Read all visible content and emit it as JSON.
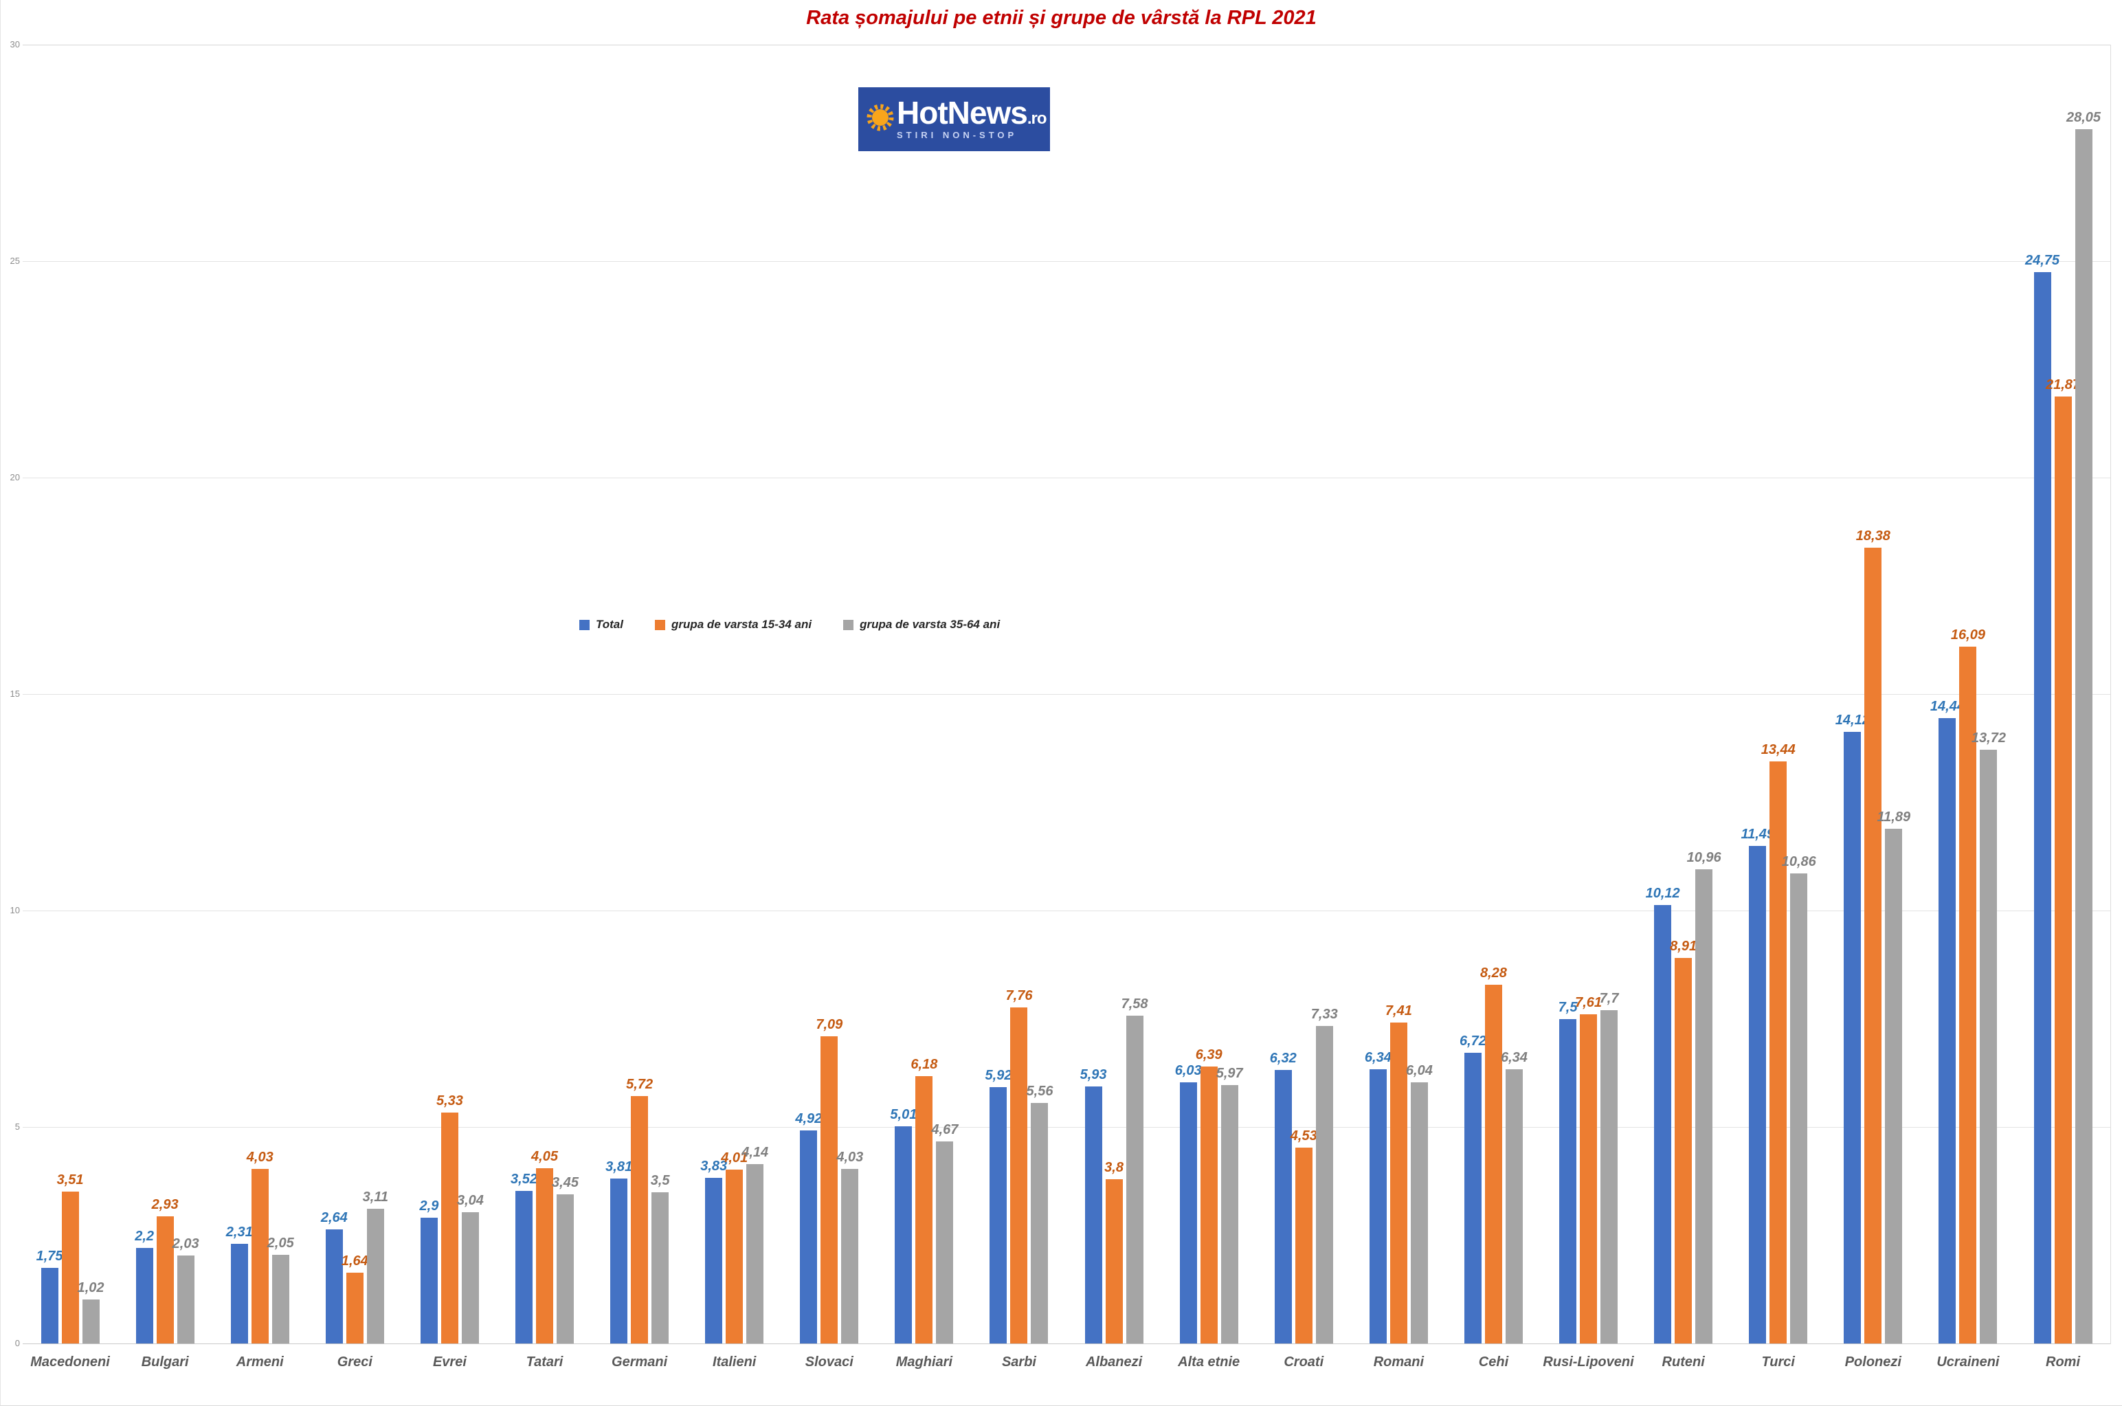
{
  "title": "Rata șomajului pe etnii și grupe de vârstă la RPL 2021",
  "title_color": "#C00000",
  "logo": {
    "brand": "HotNews",
    "tld": ".ro",
    "tagline": "STIRI NON-STOP",
    "background_color": "#2C4DA0",
    "sun_color": "#F9A51B"
  },
  "chart_data": {
    "type": "bar",
    "title": "Rata șomajului pe etnii și grupe de vârstă la RPL 2021",
    "xlabel": "",
    "ylabel": "",
    "ylim": [
      0,
      30
    ],
    "yticks": [
      0,
      5,
      10,
      15,
      20,
      25,
      30
    ],
    "grid": "horizontal",
    "legend_position": "inside-left-middle",
    "categories": [
      "Macedoneni",
      "Bulgari",
      "Armeni",
      "Greci",
      "Evrei",
      "Tatari",
      "Germani",
      "Italieni",
      "Slovaci",
      "Maghiari",
      "Sarbi",
      "Albanezi",
      "Alta etnie",
      "Croati",
      "Romani",
      "Cehi",
      "Rusi-Lipoveni",
      "Ruteni",
      "Turci",
      "Polonezi",
      "Ucraineni",
      "Romi"
    ],
    "series": [
      {
        "name": "Total",
        "color": "#4472C4",
        "label_color": "#2E75B6",
        "values": [
          1.75,
          2.2,
          2.31,
          2.64,
          2.9,
          3.52,
          3.81,
          3.83,
          4.92,
          5.01,
          5.92,
          5.93,
          6.03,
          6.32,
          6.34,
          6.72,
          7.5,
          10.12,
          11.49,
          14.12,
          14.44,
          24.75
        ],
        "labels": [
          "1,75",
          "2,2",
          "2,31",
          "2,64",
          "2,9",
          "3,52",
          "3,81",
          "3,83",
          "4,92",
          "5,01",
          "5,92",
          "5,93",
          "6,03",
          "6,32",
          "6,34",
          "6,72",
          "7,5",
          "10,12",
          "11,49",
          "14,12",
          "14,44",
          "24,75"
        ]
      },
      {
        "name": "grupa de varsta 15-34 ani",
        "color": "#ED7D31",
        "label_color": "#C55A11",
        "values": [
          3.51,
          2.93,
          4.03,
          1.64,
          5.33,
          4.05,
          5.72,
          4.01,
          7.09,
          6.18,
          7.76,
          3.8,
          6.39,
          4.53,
          7.41,
          8.28,
          7.61,
          8.91,
          13.44,
          18.38,
          16.09,
          21.87
        ],
        "labels": [
          "3,51",
          "2,93",
          "4,03",
          "1,64",
          "5,33",
          "4,05",
          "5,72",
          "4,01",
          "7,09",
          "6,18",
          "7,76",
          "3,8",
          "6,39",
          "4,53",
          "7,41",
          "8,28",
          "7,61",
          "8,91",
          "13,44",
          "18,38",
          "16,09",
          "21,87"
        ]
      },
      {
        "name": "grupa de varsta 35-64 ani",
        "color": "#A5A5A5",
        "label_color": "#7F7F7F",
        "values": [
          1.02,
          2.03,
          2.05,
          3.11,
          3.04,
          3.45,
          3.5,
          4.14,
          4.03,
          4.67,
          5.56,
          7.58,
          5.97,
          7.33,
          6.04,
          6.34,
          7.7,
          10.96,
          10.86,
          11.89,
          13.72,
          28.05
        ],
        "labels": [
          "1,02",
          "2,03",
          "2,05",
          "3,11",
          "3,04",
          "3,45",
          "3,5",
          "4,14",
          "4,03",
          "4,67",
          "5,56",
          "7,58",
          "5,97",
          "7,33",
          "6,04",
          "6,34",
          "7,7",
          "10,96",
          "10,86",
          "11,89",
          "13,72",
          "28,05"
        ]
      }
    ]
  }
}
